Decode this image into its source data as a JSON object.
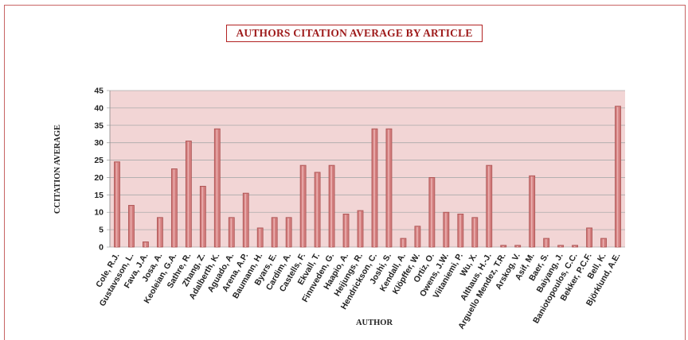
{
  "chart_data": {
    "type": "bar",
    "title": "AUTHORS CITATION AVERAGE BY ARTICLE",
    "xlabel": "AUTHOR",
    "ylabel": "CCITATION AVERAGE",
    "ylim": [
      0,
      45
    ],
    "yticks": [
      0,
      5,
      10,
      15,
      20,
      25,
      30,
      35,
      40,
      45
    ],
    "grid": true,
    "legend": "none",
    "colors": {
      "bar": "#d27d7d",
      "bar_edge": "#a94f4f",
      "plot_bg": "#f2d5d5",
      "grid": "#aaaaaa"
    },
    "categories": [
      "Cole, R.J.",
      "Gustavsson, L.",
      "Fava, J.A.",
      "Josa, A.",
      "Keoleian, G.A.",
      "Sathre, R.",
      "Zhang, Z.",
      "Adalberth, K.",
      "Aguado, A.",
      "Arena, A.P.",
      "Baumann, H.",
      "Byars, E.",
      "Cardim, A.",
      "Castells, F.",
      "Ekvall, T.",
      "Finnveden, G.",
      "Haapio, A.",
      "Heijungs, R.",
      "Hendrickson, C.",
      "Joshi, S.",
      "Kendall, A.",
      "Klöpffer, W.",
      "Ortiz, O.",
      "Owens, J.W.",
      "Viitaniemi, P.",
      "Wu, X.",
      "Althaus, H.-J.",
      "Arguello Mendez, T.R.",
      "Arskog, V.",
      "Asif, M.",
      "Baer, S.",
      "Baiyang, J.",
      "Baniotopoulos, C.C.",
      "Bekker, P.C.F.",
      "Bell, K.",
      "Björklund, A.E."
    ],
    "values": [
      24.5,
      12,
      1.5,
      8.5,
      22.5,
      30.5,
      17.5,
      34,
      8.5,
      15.5,
      5.5,
      8.5,
      8.5,
      23.5,
      21.5,
      23.5,
      9.5,
      10.5,
      34,
      34,
      2.5,
      6,
      20,
      10,
      9.5,
      8.5,
      23.5,
      0.5,
      0.5,
      20.5,
      2.5,
      0.5,
      0.5,
      5.5,
      2.5,
      40.5
    ]
  }
}
